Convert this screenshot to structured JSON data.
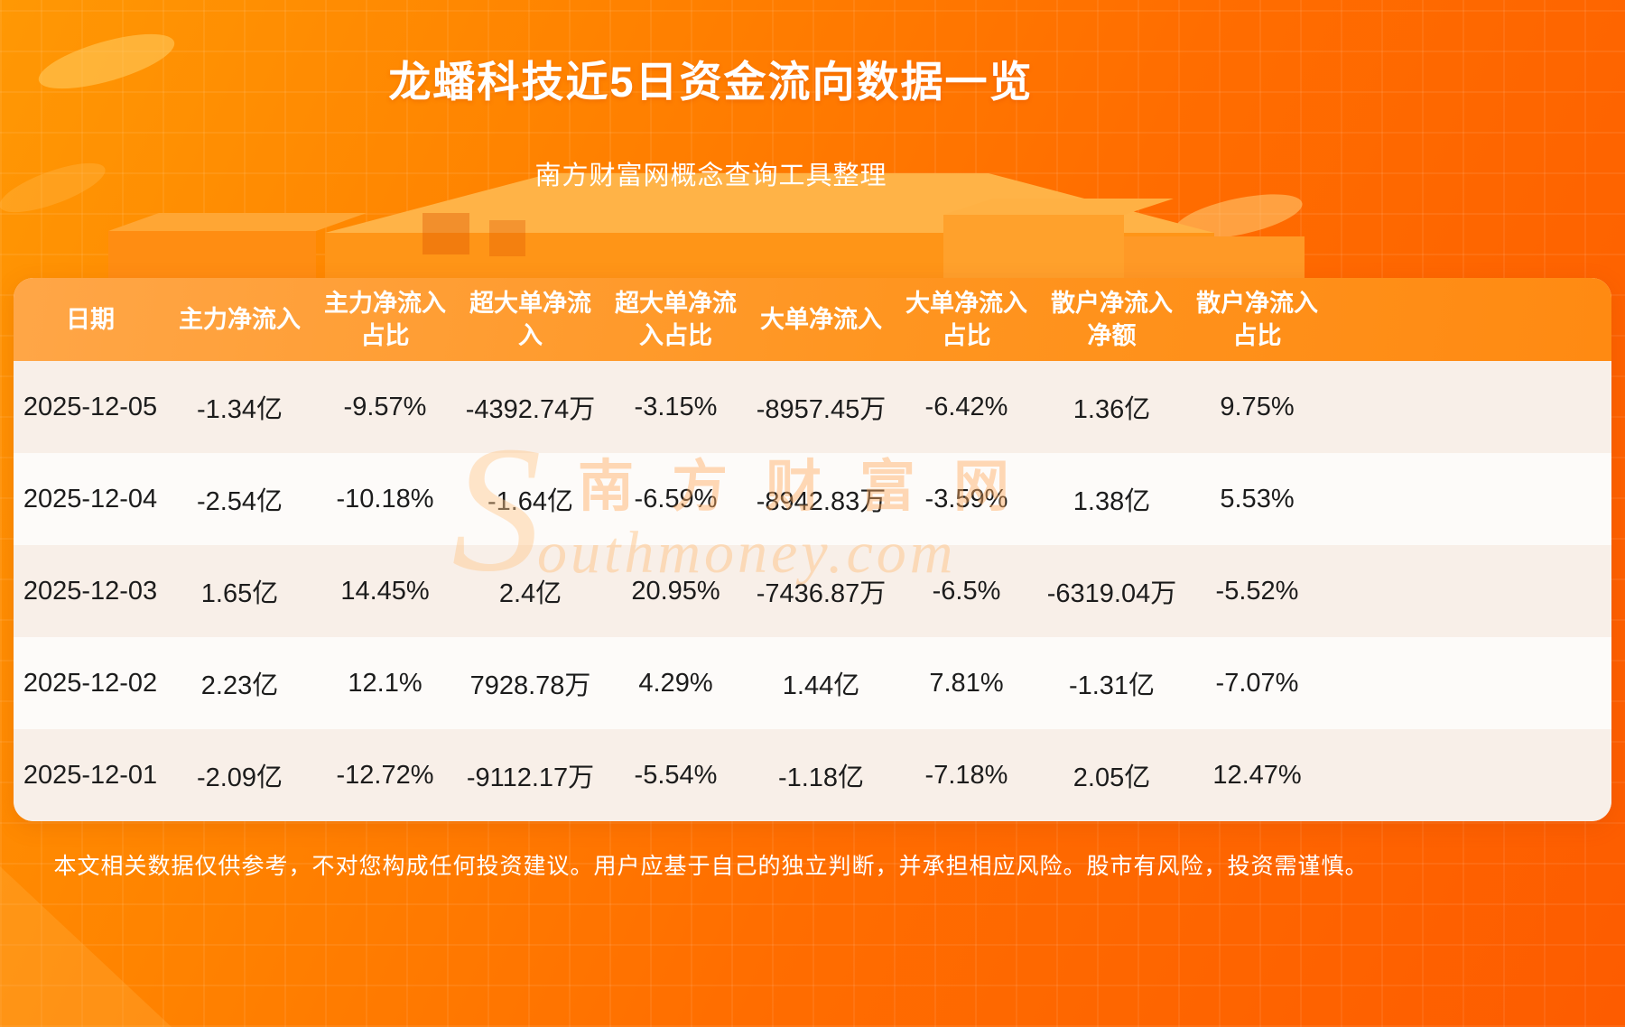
{
  "page": {
    "title": "龙蟠科技近5日资金流向数据一览",
    "subtitle": "南方财富网概念查询工具整理",
    "disclaimer": "本文相关数据仅供参考，不对您构成任何投资建议。用户应基于自己的独立判断，并承担相应风险。股市有风险，投资需谨慎。"
  },
  "watermark": {
    "initial": "S",
    "brand": "南方财富网",
    "domain": "outhmoney.com"
  },
  "colors": {
    "background_top": "#ff9804",
    "background_bottom": "#fd5c00",
    "header_gradient_start": "#ffa647",
    "header_gradient_end": "#ff8a12",
    "row_odd": "#f8efe8",
    "row_even": "#fdfbf9",
    "table_text": "#1c1c1c",
    "header_text": "#ffffff"
  },
  "chart_data": {
    "type": "table",
    "title": "龙蟠科技近5日资金流向数据一览",
    "columns": [
      "日期",
      "主力净流入",
      "主力净流入\n占比",
      "超大单净流\n入",
      "超大单净流\n入占比",
      "大单净流入",
      "大单净流入\n占比",
      "散户净流入\n净额",
      "散户净流入\n占比"
    ],
    "rows": [
      [
        "2025-12-05",
        "-1.34亿",
        "-9.57%",
        "-4392.74万",
        "-3.15%",
        "-8957.45万",
        "-6.42%",
        "1.36亿",
        "9.75%"
      ],
      [
        "2025-12-04",
        "-2.54亿",
        "-10.18%",
        "-1.64亿",
        "-6.59%",
        "-8942.83万",
        "-3.59%",
        "1.38亿",
        "5.53%"
      ],
      [
        "2025-12-03",
        "1.65亿",
        "14.45%",
        "2.4亿",
        "20.95%",
        "-7436.87万",
        "-6.5%",
        "-6319.04万",
        "-5.52%"
      ],
      [
        "2025-12-02",
        "2.23亿",
        "12.1%",
        "7928.78万",
        "4.29%",
        "1.44亿",
        "7.81%",
        "-1.31亿",
        "-7.07%"
      ],
      [
        "2025-12-01",
        "-2.09亿",
        "-12.72%",
        "-9112.17万",
        "-5.54%",
        "-1.18亿",
        "-7.18%",
        "2.05亿",
        "12.47%"
      ]
    ]
  }
}
